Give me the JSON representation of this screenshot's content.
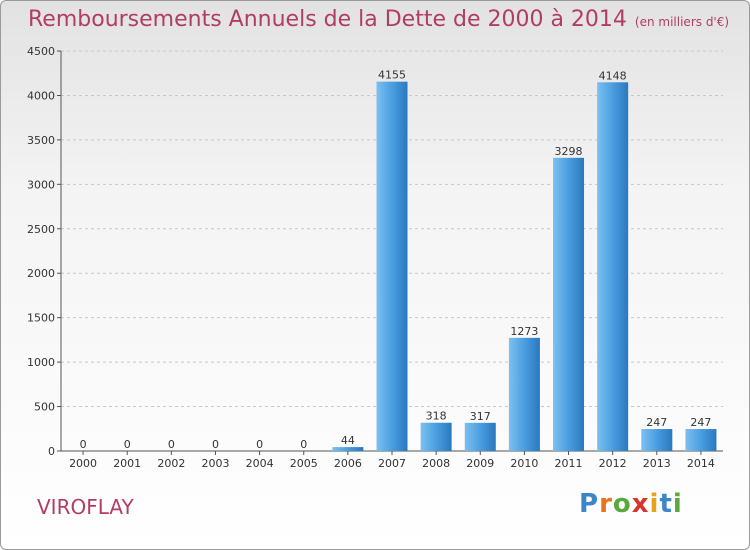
{
  "header": {
    "title": "Remboursements Annuels de la Dette de 2000 à 2014",
    "unit": "(en milliers d'€)"
  },
  "footer": {
    "commune": "VIROFLAY",
    "brand": "Proxiti",
    "brand_letters": [
      {
        "ch": "P",
        "color": "#3b86c6"
      },
      {
        "ch": "r",
        "color": "#e8731a"
      },
      {
        "ch": "o",
        "color": "#5aa83c"
      },
      {
        "ch": "x",
        "color": "#d8352a"
      },
      {
        "ch": "i",
        "color": "#e8a21a"
      },
      {
        "ch": "t",
        "color": "#3b86c6"
      },
      {
        "ch": "i",
        "color": "#5aa83c"
      }
    ]
  },
  "chart_data": {
    "type": "bar",
    "categories": [
      "2000",
      "2001",
      "2002",
      "2003",
      "2004",
      "2005",
      "2006",
      "2007",
      "2008",
      "2009",
      "2010",
      "2011",
      "2012",
      "2013",
      "2014"
    ],
    "values": [
      0,
      0,
      0,
      0,
      0,
      0,
      44,
      4155,
      318,
      317,
      1273,
      3298,
      4148,
      247,
      247
    ],
    "ylim": [
      0,
      4500
    ],
    "yticks": [
      0,
      500,
      1000,
      1500,
      2000,
      2500,
      3000,
      3500,
      4000,
      4500
    ],
    "grid": true,
    "bar_color": "#3a8fd4"
  }
}
